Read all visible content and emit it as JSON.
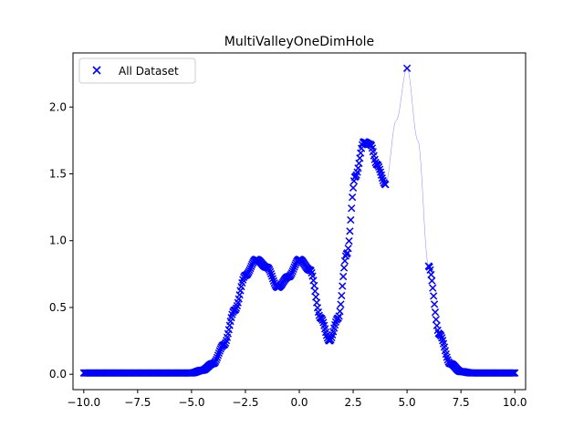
{
  "chart_data": {
    "type": "scatter",
    "title": "MultiValleyOneDimHole",
    "xlabel": "",
    "ylabel": "",
    "xlim": [
      -10.5,
      10.5
    ],
    "ylim": [
      -0.115,
      2.405
    ],
    "xticks": [
      -10.0,
      -7.5,
      -5.0,
      -2.5,
      0.0,
      2.5,
      5.0,
      7.5,
      10.0
    ],
    "xtick_labels": [
      "−10.0",
      "−7.5",
      "−5.0",
      "−2.5",
      "0.0",
      "2.5",
      "5.0",
      "7.5",
      "10.0"
    ],
    "yticks": [
      0.0,
      0.5,
      1.0,
      1.5,
      2.0
    ],
    "ytick_labels": [
      "0.0",
      "0.5",
      "1.0",
      "1.5",
      "2.0"
    ],
    "legend_position": "top-left",
    "grid": false,
    "series": [
      {
        "name": "All Dataset",
        "marker": "x",
        "color": "#0000ff",
        "x_range": [
          -10.0,
          10.0
        ],
        "holes": [
          [
            4.0,
            6.0
          ]
        ],
        "peak_in_hole": {
          "x": 5.0,
          "y": 2.29
        },
        "curve_points": [
          [
            -10.0,
            0.01
          ],
          [
            -5.0,
            0.01
          ],
          [
            -4.5,
            0.03
          ],
          [
            -4.0,
            0.08
          ],
          [
            -3.5,
            0.22
          ],
          [
            -3.0,
            0.48
          ],
          [
            -2.5,
            0.74
          ],
          [
            -2.0,
            0.86
          ],
          [
            -1.5,
            0.8
          ],
          [
            -1.0,
            0.65
          ],
          [
            -0.5,
            0.73
          ],
          [
            0.0,
            0.86
          ],
          [
            0.5,
            0.78
          ],
          [
            1.0,
            0.42
          ],
          [
            1.4,
            0.25
          ],
          [
            1.8,
            0.42
          ],
          [
            2.2,
            0.9
          ],
          [
            2.6,
            1.48
          ],
          [
            3.0,
            1.74
          ],
          [
            3.3,
            1.72
          ],
          [
            3.6,
            1.57
          ],
          [
            4.0,
            1.42
          ],
          [
            4.5,
            1.9
          ],
          [
            5.0,
            2.29
          ],
          [
            5.5,
            1.75
          ],
          [
            6.0,
            0.81
          ],
          [
            6.5,
            0.3
          ],
          [
            7.0,
            0.08
          ],
          [
            7.5,
            0.02
          ],
          [
            8.0,
            0.01
          ],
          [
            10.0,
            0.01
          ]
        ]
      }
    ]
  }
}
